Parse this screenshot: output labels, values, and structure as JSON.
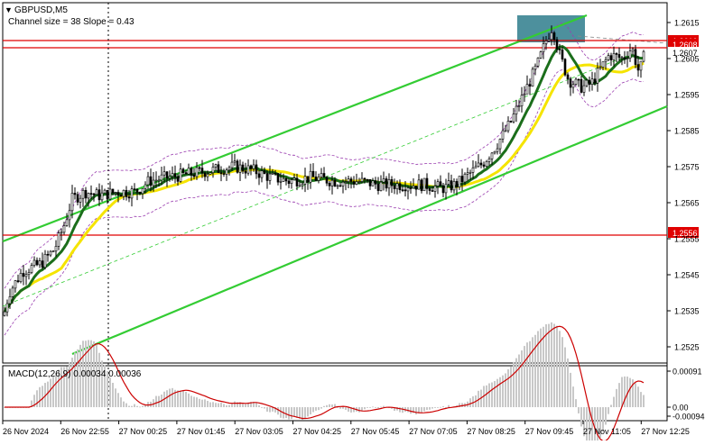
{
  "window": {
    "symbol_title": "GBPUSD,M5",
    "channel_info": "Channel size = 38 Slope = 0.43",
    "collapse_glyph": "▼"
  },
  "chart_data": [
    {
      "type": "candlestick",
      "name": "price",
      "y_ticks": [
        "1.2615",
        "1.2605",
        "1.2595",
        "1.2585",
        "1.2575",
        "1.2565",
        "1.2555",
        "1.2545",
        "1.2535",
        "1.2525"
      ],
      "price_badges": [
        {
          "label": "1.2610",
          "color": "#e00000"
        },
        {
          "label": "1.2608",
          "color": "#e00000"
        },
        {
          "label": "1.2607",
          "color": "#ffffff"
        },
        {
          "label": "1.2556",
          "color": "#e00000"
        }
      ],
      "horizontal_levels": [
        1.261,
        1.2608,
        1.2556
      ],
      "ma_fast_color": "#1b6e1b",
      "ma_slow_color": "#f5e400",
      "channel_color": "#33cc33",
      "bands_color": "#9b3fb0",
      "grid": false
    },
    {
      "type": "macd",
      "name": "MACD(12,26,9)",
      "header": "MACD(12,26,9) 0.00034 0.00036",
      "y_ticks": [
        "0.00091",
        "0.00",
        "-0.00094"
      ],
      "histogram_color": "#c8c8c8",
      "signal_color": "#cc0000"
    }
  ],
  "x_axis": {
    "labels": [
      "26 Nov 2024",
      "26 Nov 22:55",
      "27 Nov 00:25",
      "27 Nov 01:45",
      "27 Nov 03:05",
      "27 Nov 04:25",
      "27 Nov 05:45",
      "27 Nov 07:05",
      "27 Nov 08:25",
      "27 Nov 09:45",
      "27 Nov 11:05",
      "27 Nov 12:25"
    ]
  },
  "colors": {
    "background": "#ffffff",
    "level_line": "#e00000",
    "highlight_box": "#2e7d8c",
    "text": "#000000"
  }
}
